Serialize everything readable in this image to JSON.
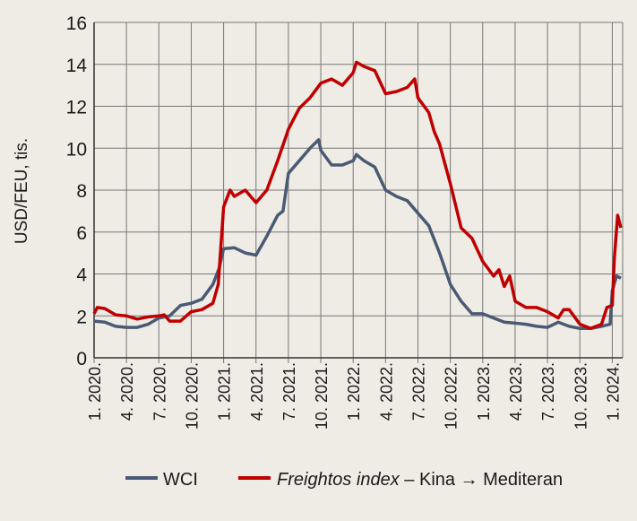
{
  "chart_data": {
    "type": "line",
    "title": "",
    "xlabel": "",
    "ylabel": "USD/FEU, tis.",
    "ylim": [
      0,
      16
    ],
    "yticks": [
      0,
      2,
      4,
      6,
      8,
      10,
      12,
      14,
      16
    ],
    "x_unit": "months since January 2020",
    "xlim": [
      0,
      48.8
    ],
    "xtick_labels": [
      "1. 2020.",
      "4. 2020.",
      "7. 2020.",
      "10. 2020.",
      "1. 2021.",
      "4. 2021.",
      "7. 2021.",
      "10. 2021.",
      "1. 2022.",
      "4. 2022.",
      "7. 2022.",
      "10. 2022.",
      "1. 2023.",
      "4. 2023.",
      "7. 2023.",
      "10. 2023.",
      "1. 2024."
    ],
    "grid": true,
    "legend": {
      "placement": "bottom",
      "entries": [
        {
          "label": "WCI",
          "color": "#4b5a74"
        },
        {
          "label_italic": "Freightos index",
          "label_rest": " – Kina → Mediteran",
          "color": "#c00000"
        }
      ]
    },
    "series": [
      {
        "name": "WCI",
        "color": "#4b5a74",
        "x": [
          0,
          1,
          2,
          3,
          4,
          5,
          6,
          7,
          8,
          9,
          10,
          11,
          11.6,
          12,
          13,
          14,
          15,
          16,
          17,
          17.5,
          18,
          19,
          20,
          20.8,
          21,
          22,
          23,
          24,
          24.3,
          25,
          26,
          27,
          28,
          29,
          30,
          31,
          32,
          33,
          34,
          35,
          36,
          37,
          38,
          39,
          40,
          41,
          42,
          43,
          44,
          45,
          46,
          47,
          47.8,
          48,
          48.4,
          48.8
        ],
        "values": [
          1.75,
          1.7,
          1.5,
          1.45,
          1.45,
          1.6,
          1.9,
          2.0,
          2.5,
          2.6,
          2.8,
          3.5,
          4.3,
          5.2,
          5.25,
          5.0,
          4.9,
          5.8,
          6.8,
          7.0,
          8.8,
          9.4,
          10.0,
          10.4,
          9.9,
          9.2,
          9.2,
          9.4,
          9.7,
          9.4,
          9.1,
          8.0,
          7.7,
          7.5,
          6.9,
          6.3,
          5.0,
          3.5,
          2.7,
          2.1,
          2.1,
          1.9,
          1.7,
          1.65,
          1.6,
          1.5,
          1.45,
          1.7,
          1.5,
          1.4,
          1.4,
          1.5,
          1.6,
          3.2,
          3.9,
          3.8
        ]
      },
      {
        "name": "Freightos index – Kina → Mediteran",
        "color": "#c00000",
        "x": [
          0,
          0.3,
          1,
          2,
          3,
          4,
          5,
          6,
          6.5,
          7,
          8,
          9,
          10,
          11,
          11.5,
          12,
          12.6,
          13,
          14,
          15,
          16,
          17,
          18,
          19,
          20,
          21,
          22,
          23,
          24,
          24.3,
          25,
          26,
          27,
          28,
          29,
          29.7,
          30,
          31,
          31.5,
          32,
          33,
          34,
          35,
          36,
          37,
          37.5,
          38,
          38.5,
          39,
          40,
          41,
          42,
          43,
          43.5,
          44,
          45,
          46,
          47,
          47.5,
          48,
          48.2,
          48.5,
          48.8
        ],
        "values": [
          2.1,
          2.4,
          2.35,
          2.05,
          2.0,
          1.85,
          1.95,
          2.0,
          2.05,
          1.75,
          1.75,
          2.2,
          2.3,
          2.6,
          3.5,
          7.2,
          8.0,
          7.7,
          8.0,
          7.4,
          8.0,
          9.4,
          10.9,
          11.9,
          12.4,
          13.1,
          13.3,
          13.0,
          13.6,
          14.1,
          13.9,
          13.7,
          12.6,
          12.7,
          12.9,
          13.3,
          12.4,
          11.7,
          10.8,
          10.2,
          8.3,
          6.2,
          5.7,
          4.6,
          3.9,
          4.2,
          3.4,
          3.9,
          2.7,
          2.4,
          2.4,
          2.2,
          1.9,
          2.3,
          2.3,
          1.6,
          1.4,
          1.6,
          2.4,
          2.5,
          4.8,
          6.8,
          6.2
        ]
      }
    ]
  }
}
